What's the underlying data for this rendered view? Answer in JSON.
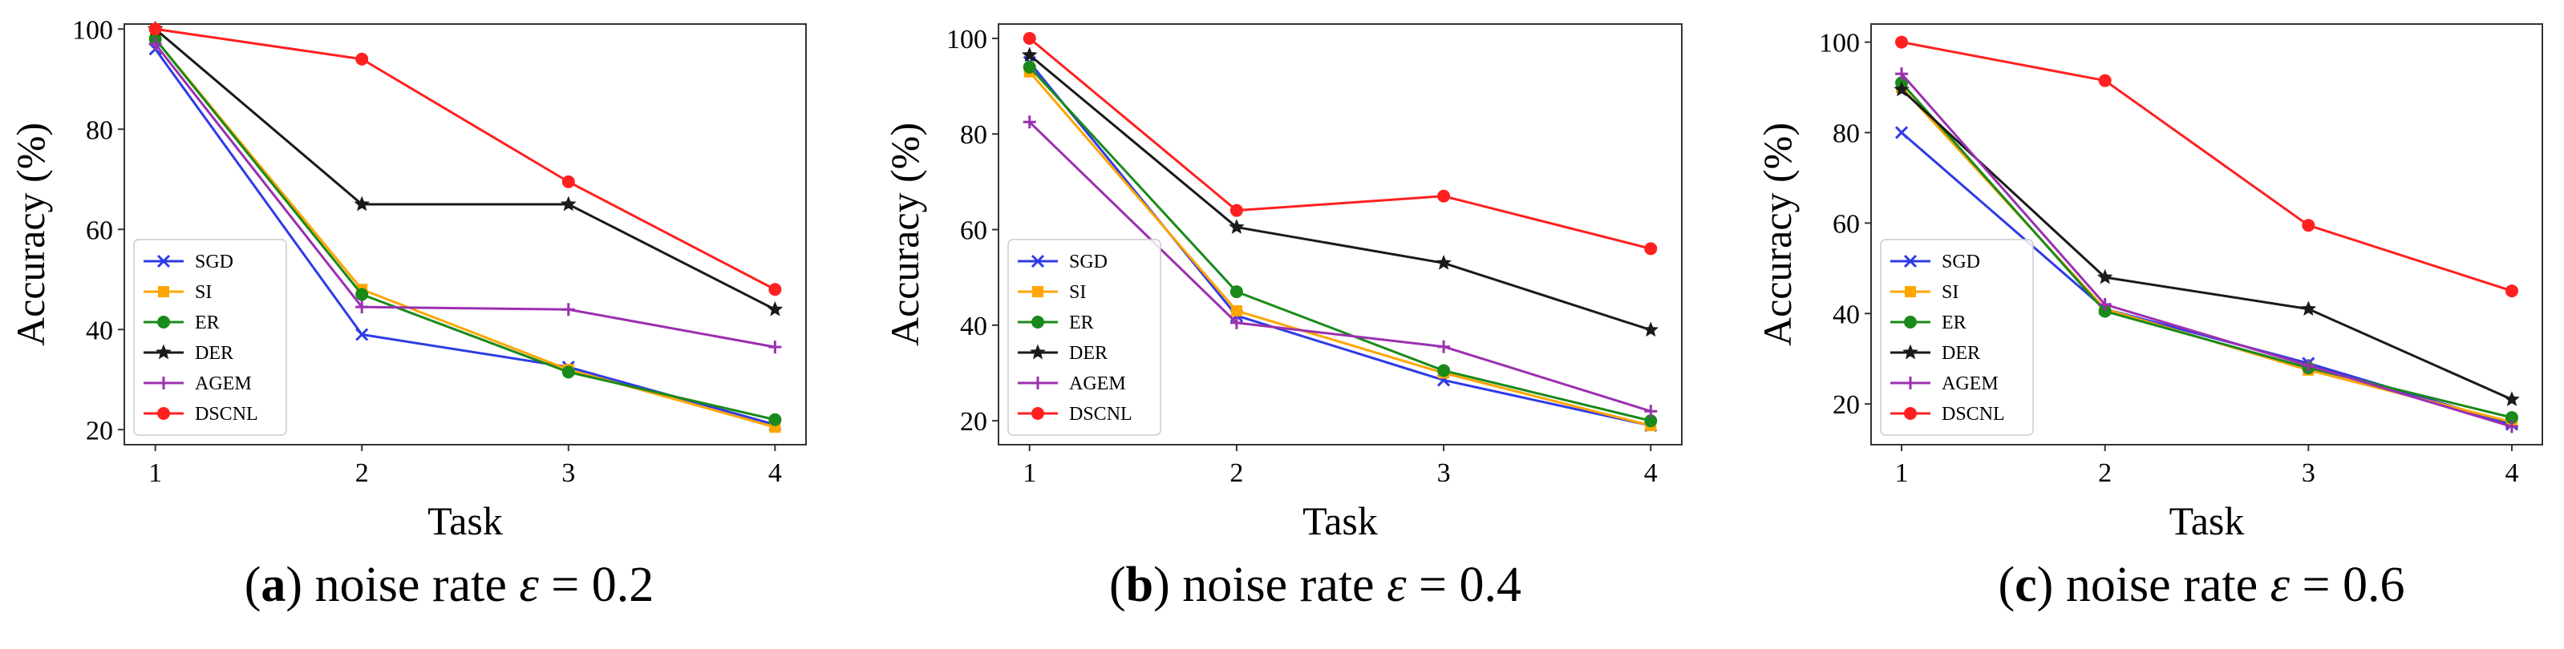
{
  "colors": {
    "SGD": "#2f3be6",
    "SI": "#ffa500",
    "ER": "#1a8a1a",
    "DER": "#1a1a1a",
    "AGEM": "#9b30b0",
    "DSCNL": "#ff2020"
  },
  "markers": {
    "SGD": "x",
    "SI": "square",
    "ER": "circle",
    "DER": "star",
    "AGEM": "plus",
    "DSCNL": "circle"
  },
  "chart_data": [
    {
      "type": "line",
      "xlabel": "Task",
      "ylabel": "Accuracy (%)",
      "x": [
        1,
        2,
        3,
        4
      ],
      "xticks": [
        "1",
        "2",
        "3",
        "4"
      ],
      "yticks": [
        20,
        40,
        60,
        80,
        100
      ],
      "ylim": [
        17,
        101
      ],
      "grid": false,
      "legend_position": "lower-left",
      "caption": {
        "label": "a",
        "text": "noise rate",
        "symbol": "ε",
        "value": "= 0.2"
      },
      "series": [
        {
          "name": "SGD",
          "values": [
            96,
            39,
            32.5,
            21
          ]
        },
        {
          "name": "SI",
          "values": [
            98,
            48,
            32,
            20.5
          ]
        },
        {
          "name": "ER",
          "values": [
            98,
            47,
            31.5,
            22
          ]
        },
        {
          "name": "DER",
          "values": [
            100,
            65,
            65,
            44
          ]
        },
        {
          "name": "AGEM",
          "values": [
            97,
            44.5,
            44,
            36.5
          ]
        },
        {
          "name": "DSCNL",
          "values": [
            100,
            94,
            69.5,
            48
          ]
        }
      ]
    },
    {
      "type": "line",
      "xlabel": "Task",
      "ylabel": "Accuracy (%)",
      "x": [
        1,
        2,
        3,
        4
      ],
      "xticks": [
        "1",
        "2",
        "3",
        "4"
      ],
      "yticks": [
        20,
        40,
        60,
        80,
        100
      ],
      "ylim": [
        15,
        103
      ],
      "grid": false,
      "legend_position": "lower-left",
      "caption": {
        "label": "b",
        "text": "noise rate",
        "symbol": "ε",
        "value": "= 0.4"
      },
      "series": [
        {
          "name": "SGD",
          "values": [
            95,
            42,
            28.5,
            19
          ]
        },
        {
          "name": "SI",
          "values": [
            93,
            43,
            30,
            19
          ]
        },
        {
          "name": "ER",
          "values": [
            94,
            47,
            30.5,
            20
          ]
        },
        {
          "name": "DER",
          "values": [
            96.5,
            60.5,
            53,
            39
          ]
        },
        {
          "name": "AGEM",
          "values": [
            82.5,
            40.5,
            35.5,
            22
          ]
        },
        {
          "name": "DSCNL",
          "values": [
            100,
            64,
            67,
            56
          ]
        }
      ]
    },
    {
      "type": "line",
      "xlabel": "Task",
      "ylabel": "Accuracy (%)",
      "x": [
        1,
        2,
        3,
        4
      ],
      "xticks": [
        "1",
        "2",
        "3",
        "4"
      ],
      "yticks": [
        20,
        40,
        60,
        80,
        100
      ],
      "ylim": [
        11,
        104
      ],
      "grid": false,
      "legend_position": "lower-left",
      "caption": {
        "label": "c",
        "text": "noise rate",
        "symbol": "ε",
        "value": "= 0.6"
      },
      "series": [
        {
          "name": "SGD",
          "values": [
            80,
            41,
            29,
            15.5
          ]
        },
        {
          "name": "SI",
          "values": [
            90,
            41,
            27.5,
            16
          ]
        },
        {
          "name": "ER",
          "values": [
            91,
            40.5,
            28,
            17
          ]
        },
        {
          "name": "DER",
          "values": [
            89.5,
            48,
            41,
            21
          ]
        },
        {
          "name": "AGEM",
          "values": [
            93,
            42,
            28.5,
            15
          ]
        },
        {
          "name": "DSCNL",
          "values": [
            100,
            91.5,
            59.5,
            45
          ]
        }
      ]
    }
  ]
}
